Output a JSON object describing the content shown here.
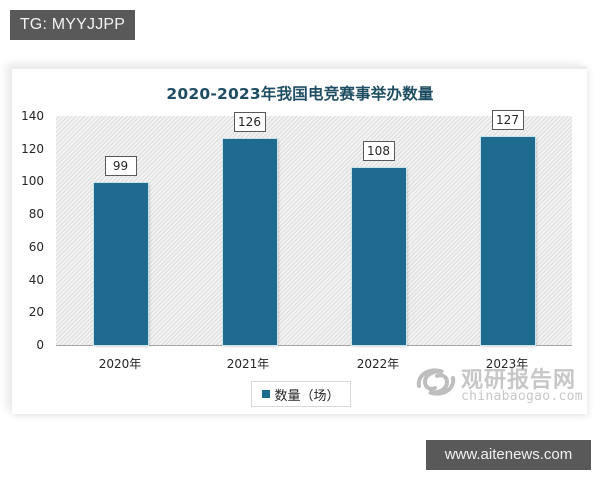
{
  "overlay": {
    "tg_label": "TG: MYYJJPP",
    "site_url": "www.aitenews.com"
  },
  "watermark": {
    "cn_text": "观研报告网",
    "en_text": "chinabaogao.com",
    "icon": "chinabaogao-swirl-logo-icon"
  },
  "colors": {
    "bar": "#1e6b8f",
    "title": "#1f4e62",
    "badge_bg": "#595959"
  },
  "chart_data": {
    "type": "bar",
    "title": "2020-2023年我国电竞赛事举办数量",
    "categories": [
      "2020年",
      "2021年",
      "2022年",
      "2023年"
    ],
    "series": [
      {
        "name": "数量（场）",
        "values": [
          99,
          126,
          108,
          127
        ]
      }
    ],
    "data_labels": [
      "99",
      "126",
      "108",
      "127"
    ],
    "xlabel": "",
    "ylabel": "",
    "ylim": [
      0,
      140
    ],
    "yticks": [
      "0",
      "20",
      "40",
      "60",
      "80",
      "100",
      "120",
      "140"
    ],
    "grid": false,
    "legend_position": "bottom",
    "legend_label": "数量（场）"
  }
}
